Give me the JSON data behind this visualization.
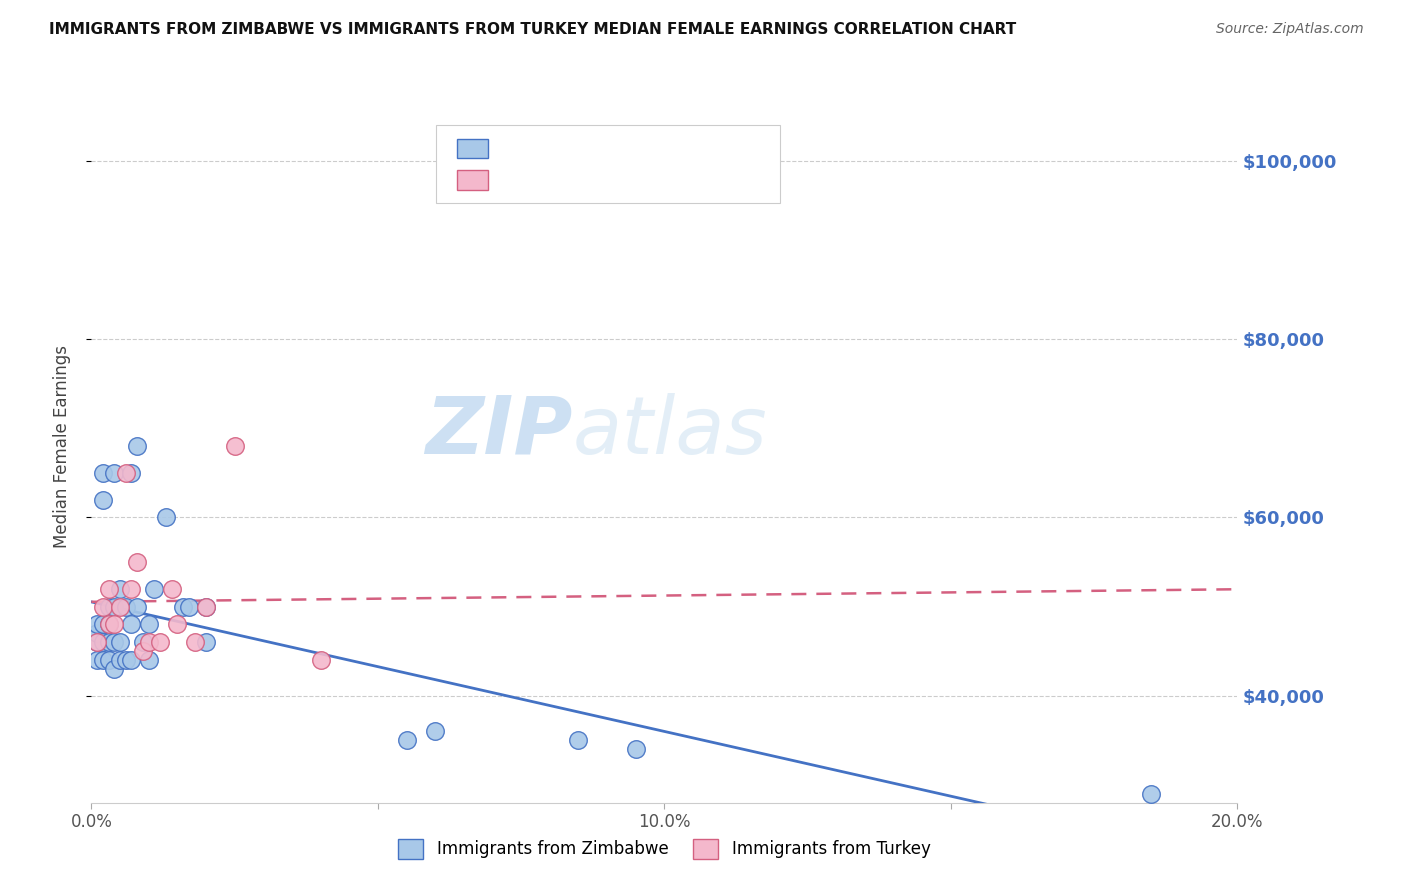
{
  "title": "IMMIGRANTS FROM ZIMBABWE VS IMMIGRANTS FROM TURKEY MEDIAN FEMALE EARNINGS CORRELATION CHART",
  "source": "Source: ZipAtlas.com",
  "ylabel": "Median Female Earnings",
  "xlim": [
    0.0,
    0.2
  ],
  "ylim": [
    28000,
    108000
  ],
  "yticks": [
    40000,
    60000,
    80000,
    100000
  ],
  "ytick_labels": [
    "$40,000",
    "$60,000",
    "$80,000",
    "$100,000"
  ],
  "xticks": [
    0.0,
    0.05,
    0.1,
    0.15,
    0.2
  ],
  "xtick_labels": [
    "0.0%",
    "",
    "10.0%",
    "",
    "20.0%"
  ],
  "color_zimbabwe": "#a8c8e8",
  "color_turkey": "#f4b8cc",
  "color_line_zimbabwe": "#4472c4",
  "color_line_turkey": "#d46080",
  "color_label_blue": "#4472c4",
  "background_color": "#ffffff",
  "watermark_zip": "ZIP",
  "watermark_atlas": "atlas",
  "zimbabwe_x": [
    0.001,
    0.001,
    0.001,
    0.001,
    0.002,
    0.002,
    0.002,
    0.002,
    0.002,
    0.003,
    0.003,
    0.003,
    0.003,
    0.004,
    0.004,
    0.004,
    0.004,
    0.005,
    0.005,
    0.005,
    0.006,
    0.006,
    0.007,
    0.007,
    0.007,
    0.008,
    0.008,
    0.009,
    0.01,
    0.01,
    0.011,
    0.013,
    0.016,
    0.017,
    0.02,
    0.02,
    0.055,
    0.06,
    0.085,
    0.095,
    0.185
  ],
  "zimbabwe_y": [
    44000,
    46000,
    47000,
    48000,
    44000,
    46000,
    48000,
    62000,
    65000,
    44000,
    46000,
    48000,
    50000,
    43000,
    46000,
    50000,
    65000,
    44000,
    46000,
    52000,
    44000,
    50000,
    44000,
    48000,
    65000,
    50000,
    68000,
    46000,
    44000,
    48000,
    52000,
    60000,
    50000,
    50000,
    46000,
    50000,
    35000,
    36000,
    35000,
    34000,
    29000
  ],
  "turkey_x": [
    0.001,
    0.002,
    0.003,
    0.003,
    0.004,
    0.005,
    0.006,
    0.007,
    0.008,
    0.009,
    0.01,
    0.012,
    0.014,
    0.015,
    0.018,
    0.02,
    0.025,
    0.04
  ],
  "turkey_y": [
    46000,
    50000,
    48000,
    52000,
    48000,
    50000,
    65000,
    52000,
    55000,
    45000,
    46000,
    46000,
    52000,
    48000,
    46000,
    50000,
    68000,
    44000
  ]
}
